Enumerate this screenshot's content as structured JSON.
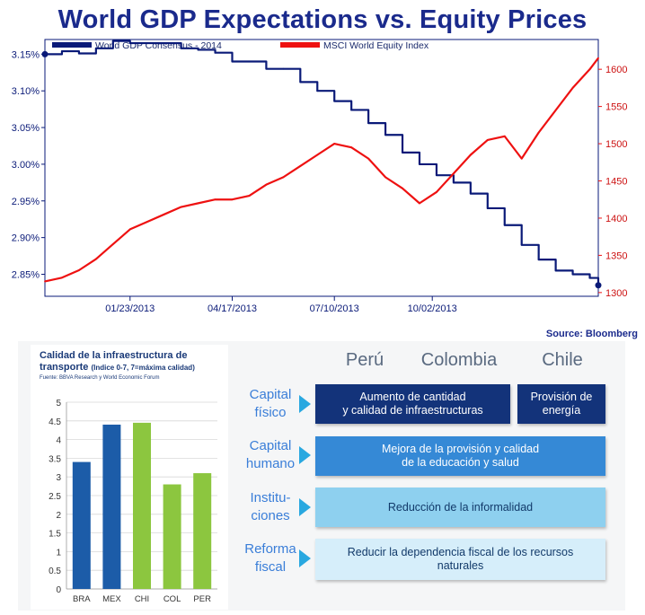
{
  "title": "World GDP Expectations vs. Equity Prices",
  "source": "Source: Bloomberg",
  "chart_data": [
    {
      "type": "line",
      "title": "World GDP Expectations vs. Equity Prices",
      "x_ticks": [
        "01/23/2013",
        "04/17/2013",
        "07/10/2013",
        "10/02/2013"
      ],
      "y_left_ticks": [
        "3.15%",
        "3.10%",
        "3.05%",
        "3.00%",
        "2.95%",
        "2.90%",
        "2.85%"
      ],
      "y_left_range": [
        2.82,
        3.17
      ],
      "y_right_ticks": [
        "1600",
        "1550",
        "1500",
        "1450",
        "1400",
        "1350",
        "1300"
      ],
      "y_right_range": [
        1295,
        1640
      ],
      "x_range": [
        0,
        13
      ],
      "series": [
        {
          "name": "World GDP Consensus - 2014",
          "axis": "left",
          "color": "#0a1a78",
          "points": [
            [
              0,
              3.15
            ],
            [
              0.4,
              3.154
            ],
            [
              0.8,
              3.151
            ],
            [
              1.2,
              3.158
            ],
            [
              1.6,
              3.168
            ],
            [
              2.0,
              3.165
            ],
            [
              2.4,
              3.165
            ],
            [
              2.8,
              3.165
            ],
            [
              3.2,
              3.158
            ],
            [
              3.6,
              3.156
            ],
            [
              4.0,
              3.152
            ],
            [
              4.4,
              3.14
            ],
            [
              4.8,
              3.14
            ],
            [
              5.2,
              3.13
            ],
            [
              5.6,
              3.13
            ],
            [
              6.0,
              3.112
            ],
            [
              6.4,
              3.1
            ],
            [
              6.8,
              3.086
            ],
            [
              7.2,
              3.074
            ],
            [
              7.6,
              3.056
            ],
            [
              8.0,
              3.04
            ],
            [
              8.4,
              3.016
            ],
            [
              8.8,
              3.0
            ],
            [
              9.2,
              2.985
            ],
            [
              9.6,
              2.975
            ],
            [
              10.0,
              2.96
            ],
            [
              10.4,
              2.94
            ],
            [
              10.8,
              2.917
            ],
            [
              11.2,
              2.89
            ],
            [
              11.6,
              2.87
            ],
            [
              12.0,
              2.855
            ],
            [
              12.4,
              2.85
            ],
            [
              12.8,
              2.845
            ],
            [
              13.0,
              2.835
            ]
          ]
        },
        {
          "name": "MSCI World Equity Index",
          "axis": "right",
          "color": "#ee1111",
          "points": [
            [
              0,
              1315
            ],
            [
              0.4,
              1320
            ],
            [
              0.8,
              1330
            ],
            [
              1.2,
              1345
            ],
            [
              1.6,
              1365
            ],
            [
              2.0,
              1385
            ],
            [
              2.4,
              1395
            ],
            [
              2.8,
              1405
            ],
            [
              3.2,
              1415
            ],
            [
              3.6,
              1420
            ],
            [
              4.0,
              1425
            ],
            [
              4.4,
              1425
            ],
            [
              4.8,
              1430
            ],
            [
              5.2,
              1445
            ],
            [
              5.6,
              1455
            ],
            [
              6.0,
              1470
            ],
            [
              6.4,
              1485
            ],
            [
              6.8,
              1500
            ],
            [
              7.2,
              1495
            ],
            [
              7.6,
              1480
            ],
            [
              8.0,
              1455
            ],
            [
              8.4,
              1440
            ],
            [
              8.8,
              1420
            ],
            [
              9.2,
              1435
            ],
            [
              9.6,
              1460
            ],
            [
              10.0,
              1485
            ],
            [
              10.4,
              1505
            ],
            [
              10.8,
              1510
            ],
            [
              11.2,
              1480
            ],
            [
              11.6,
              1515
            ],
            [
              12.0,
              1545
            ],
            [
              12.4,
              1575
            ],
            [
              12.8,
              1600
            ],
            [
              13.0,
              1615
            ]
          ]
        }
      ]
    },
    {
      "type": "bar",
      "title": "Calidad de la infraestructura de transporte",
      "categories": [
        "BRA",
        "MEX",
        "CHI",
        "COL",
        "PER"
      ],
      "values": [
        3.4,
        4.4,
        4.45,
        2.8,
        3.1
      ],
      "colors": [
        "#1c5ca8",
        "#1c5ca8",
        "#8cc63f",
        "#8cc63f",
        "#8cc63f"
      ],
      "y_ticks": [
        "0",
        "0.5",
        "1",
        "1.5",
        "2",
        "2.5",
        "3",
        "3.5",
        "4",
        "4.5",
        "5"
      ],
      "ylim": [
        0,
        5
      ]
    }
  ],
  "infra": {
    "title": "Calidad de la infraestructura de",
    "title2": "transporte",
    "subtitle": "(Indice 0-7, 7=máxima calidad)",
    "source": "Fuente: BBVA Research y World Economic Forum"
  },
  "matrix": {
    "columns": [
      "Perú",
      "Colombia",
      "Chile"
    ],
    "rows": [
      {
        "label_l1": "Capital",
        "label_l2": "físico"
      },
      {
        "label_l1": "Capital",
        "label_l2": "humano"
      },
      {
        "label_l1": "Institu-",
        "label_l2": "ciones"
      },
      {
        "label_l1": "Reforma",
        "label_l2": "fiscal"
      }
    ],
    "boxes": {
      "b1": {
        "l1": "Aumento de cantidad",
        "l2": "y calidad de infraestructuras"
      },
      "b2": {
        "l1": "Provisión de",
        "l2": "energía"
      },
      "b3": {
        "l1": "Mejora de la provisión y calidad",
        "l2": "de la educación y salud"
      },
      "b4": {
        "l1": "Reducción de la informalidad"
      },
      "b5": {
        "l1": "Reducir la dependencia fiscal de los recursos",
        "l2": "naturales"
      }
    }
  }
}
